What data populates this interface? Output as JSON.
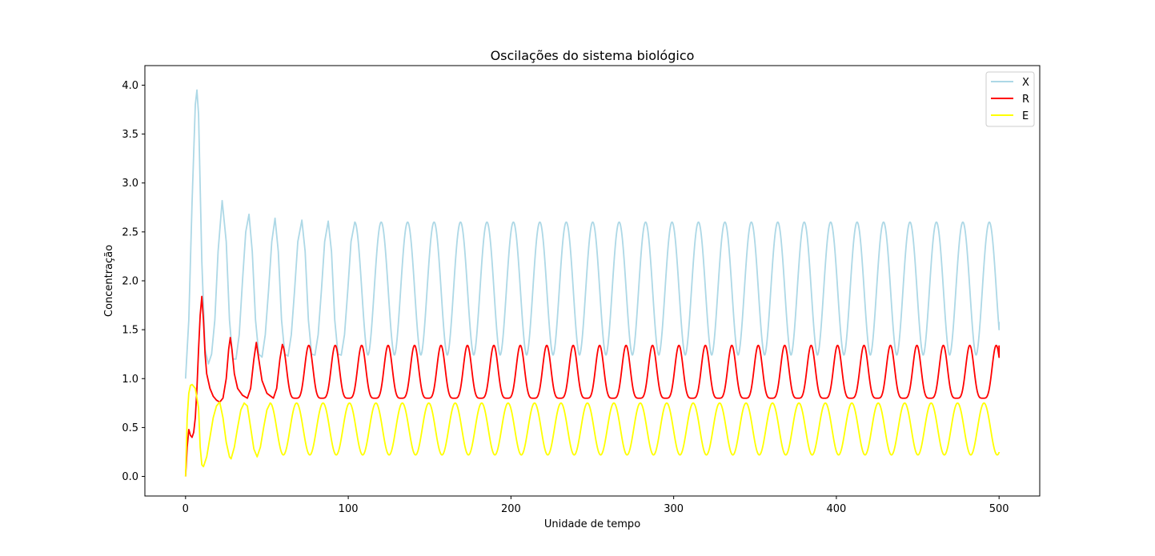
{
  "chart_data": {
    "type": "line",
    "title": "Oscilações do sistema biológico",
    "xlabel": "Unidade de tempo",
    "ylabel": "Concentração",
    "xlim": [
      -25,
      525
    ],
    "ylim": [
      -0.2,
      4.2
    ],
    "xticks": [
      0,
      100,
      200,
      300,
      400,
      500
    ],
    "xtick_labels": [
      "0",
      "100",
      "200",
      "300",
      "400",
      "500"
    ],
    "yticks": [
      0.0,
      0.5,
      1.0,
      1.5,
      2.0,
      2.5,
      3.0,
      3.5,
      4.0
    ],
    "ytick_labels": [
      "0.0",
      "0.5",
      "1.0",
      "1.5",
      "2.0",
      "2.5",
      "3.0",
      "3.5",
      "4.0"
    ],
    "grid": false,
    "legend_position": "top-right",
    "series": [
      {
        "name": "X",
        "color": "#add8e6",
        "points": [
          [
            0,
            1.0
          ],
          [
            2,
            1.6
          ],
          [
            4,
            2.8
          ],
          [
            6,
            3.8
          ],
          [
            7,
            3.95
          ],
          [
            8,
            3.7
          ],
          [
            10,
            2.2
          ],
          [
            12,
            1.3
          ],
          [
            14,
            1.15
          ],
          [
            16,
            1.25
          ],
          [
            18,
            1.6
          ],
          [
            20,
            2.3
          ],
          [
            22.5,
            2.82
          ],
          [
            25,
            2.4
          ],
          [
            27,
            1.6
          ],
          [
            29,
            1.2
          ],
          [
            31,
            1.2
          ],
          [
            33,
            1.45
          ],
          [
            35,
            2.0
          ],
          [
            37,
            2.5
          ],
          [
            39,
            2.68
          ],
          [
            41,
            2.3
          ],
          [
            43,
            1.6
          ],
          [
            45,
            1.25
          ],
          [
            47,
            1.22
          ],
          [
            49,
            1.45
          ],
          [
            51,
            1.9
          ],
          [
            53,
            2.4
          ],
          [
            55,
            2.64
          ],
          [
            57,
            2.3
          ],
          [
            59,
            1.6
          ],
          [
            61,
            1.25
          ],
          [
            63,
            1.23
          ],
          [
            65,
            1.45
          ],
          [
            67,
            1.9
          ],
          [
            69,
            2.4
          ],
          [
            71.5,
            2.62
          ],
          [
            73.5,
            2.3
          ],
          [
            75.5,
            1.6
          ],
          [
            77.5,
            1.25
          ],
          [
            79.5,
            1.24
          ],
          [
            81.5,
            1.45
          ],
          [
            83.5,
            1.9
          ],
          [
            85.5,
            2.4
          ],
          [
            87.7,
            2.61
          ],
          [
            89.7,
            2.3
          ],
          [
            91.7,
            1.6
          ],
          [
            93.7,
            1.25
          ],
          [
            95.7,
            1.24
          ],
          [
            97.7,
            1.45
          ],
          [
            99.7,
            1.9
          ],
          [
            101.7,
            2.4
          ],
          [
            104,
            2.6
          ],
          [
            500,
            1.58
          ]
        ],
        "period": 16.25,
        "max": 2.6,
        "min": 1.24
      },
      {
        "name": "R",
        "color": "#ff0000",
        "points": [
          [
            0,
            0.0
          ],
          [
            1,
            0.3
          ],
          [
            2,
            0.48
          ],
          [
            3,
            0.42
          ],
          [
            4,
            0.4
          ],
          [
            5,
            0.45
          ],
          [
            6,
            0.6
          ],
          [
            7,
            0.9
          ],
          [
            8,
            1.3
          ],
          [
            9,
            1.65
          ],
          [
            10,
            1.84
          ],
          [
            11,
            1.6
          ],
          [
            12,
            1.25
          ],
          [
            13,
            1.05
          ],
          [
            15,
            0.9
          ],
          [
            17,
            0.82
          ],
          [
            19,
            0.78
          ],
          [
            21,
            0.76
          ],
          [
            23,
            0.8
          ],
          [
            25,
            1.0
          ],
          [
            26.5,
            1.3
          ],
          [
            27.5,
            1.42
          ],
          [
            28.5,
            1.3
          ],
          [
            30,
            1.05
          ],
          [
            32,
            0.9
          ],
          [
            35,
            0.83
          ],
          [
            38,
            0.8
          ],
          [
            40,
            0.9
          ],
          [
            42,
            1.2
          ],
          [
            43.5,
            1.37
          ],
          [
            45,
            1.2
          ],
          [
            47,
            0.98
          ],
          [
            50,
            0.85
          ],
          [
            54,
            0.8
          ],
          [
            56,
            0.9
          ],
          [
            58,
            1.2
          ],
          [
            59.5,
            1.35
          ],
          [
            500,
            1.34
          ]
        ],
        "period": 16.25,
        "max": 1.34,
        "min": 0.8
      },
      {
        "name": "E",
        "color": "#ffff00",
        "points": [
          [
            0,
            0.0
          ],
          [
            0.5,
            0.3
          ],
          [
            1,
            0.6
          ],
          [
            2,
            0.85
          ],
          [
            3,
            0.93
          ],
          [
            4,
            0.94
          ],
          [
            6,
            0.9
          ],
          [
            8,
            0.7
          ],
          [
            9,
            0.3
          ],
          [
            10,
            0.12
          ],
          [
            11,
            0.1
          ],
          [
            13,
            0.2
          ],
          [
            15,
            0.4
          ],
          [
            17,
            0.6
          ],
          [
            19,
            0.72
          ],
          [
            21,
            0.76
          ],
          [
            23,
            0.6
          ],
          [
            25,
            0.35
          ],
          [
            27,
            0.2
          ],
          [
            28,
            0.18
          ],
          [
            30,
            0.3
          ],
          [
            32,
            0.5
          ],
          [
            34,
            0.68
          ],
          [
            36,
            0.75
          ],
          [
            38,
            0.72
          ],
          [
            40,
            0.5
          ],
          [
            42,
            0.28
          ],
          [
            44,
            0.2
          ],
          [
            46,
            0.3
          ],
          [
            48,
            0.5
          ],
          [
            50,
            0.68
          ],
          [
            52,
            0.75
          ],
          [
            500,
            0.25
          ]
        ],
        "period": 16.25,
        "max": 0.75,
        "min": 0.22
      }
    ]
  }
}
